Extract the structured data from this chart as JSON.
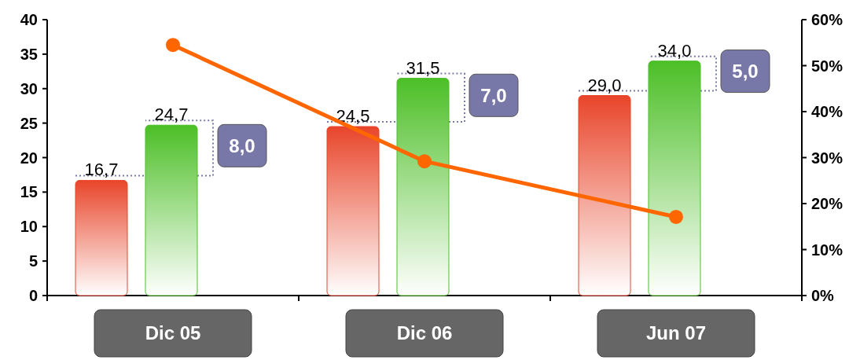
{
  "chart_data": {
    "type": "bar",
    "categories": [
      "Dic 05",
      "Dic 06",
      "Jun 07"
    ],
    "series": [
      {
        "color": "#e8452a",
        "values": [
          16.7,
          24.5,
          29.0
        ],
        "value_labels": [
          "16,7",
          "24,5",
          "29,0"
        ]
      },
      {
        "color": "#4cbf26",
        "values": [
          24.7,
          31.5,
          34.0
        ],
        "value_labels": [
          "24,7",
          "31,5",
          "34,0"
        ]
      },
      {
        "type": "line",
        "axis": "y2",
        "color": "#ff6600",
        "values": [
          54.5,
          29.2,
          17.1
        ]
      }
    ],
    "ylim": [
      0,
      40
    ],
    "yticks": [
      0,
      5,
      10,
      15,
      20,
      25,
      30,
      35,
      40
    ],
    "y2lim": [
      0,
      60
    ],
    "y2ticks": [
      {
        "value": 0,
        "label": "0%"
      },
      {
        "value": 10,
        "label": "10%"
      },
      {
        "value": 20,
        "label": "20%"
      },
      {
        "value": 30,
        "label": "30%"
      },
      {
        "value": 40,
        "label": "40%"
      },
      {
        "value": 50,
        "label": "50%"
      },
      {
        "value": 60,
        "label": "60%"
      }
    ],
    "marker": "circle",
    "annotations": [
      "8,0",
      "7,0",
      "5,0"
    ]
  }
}
